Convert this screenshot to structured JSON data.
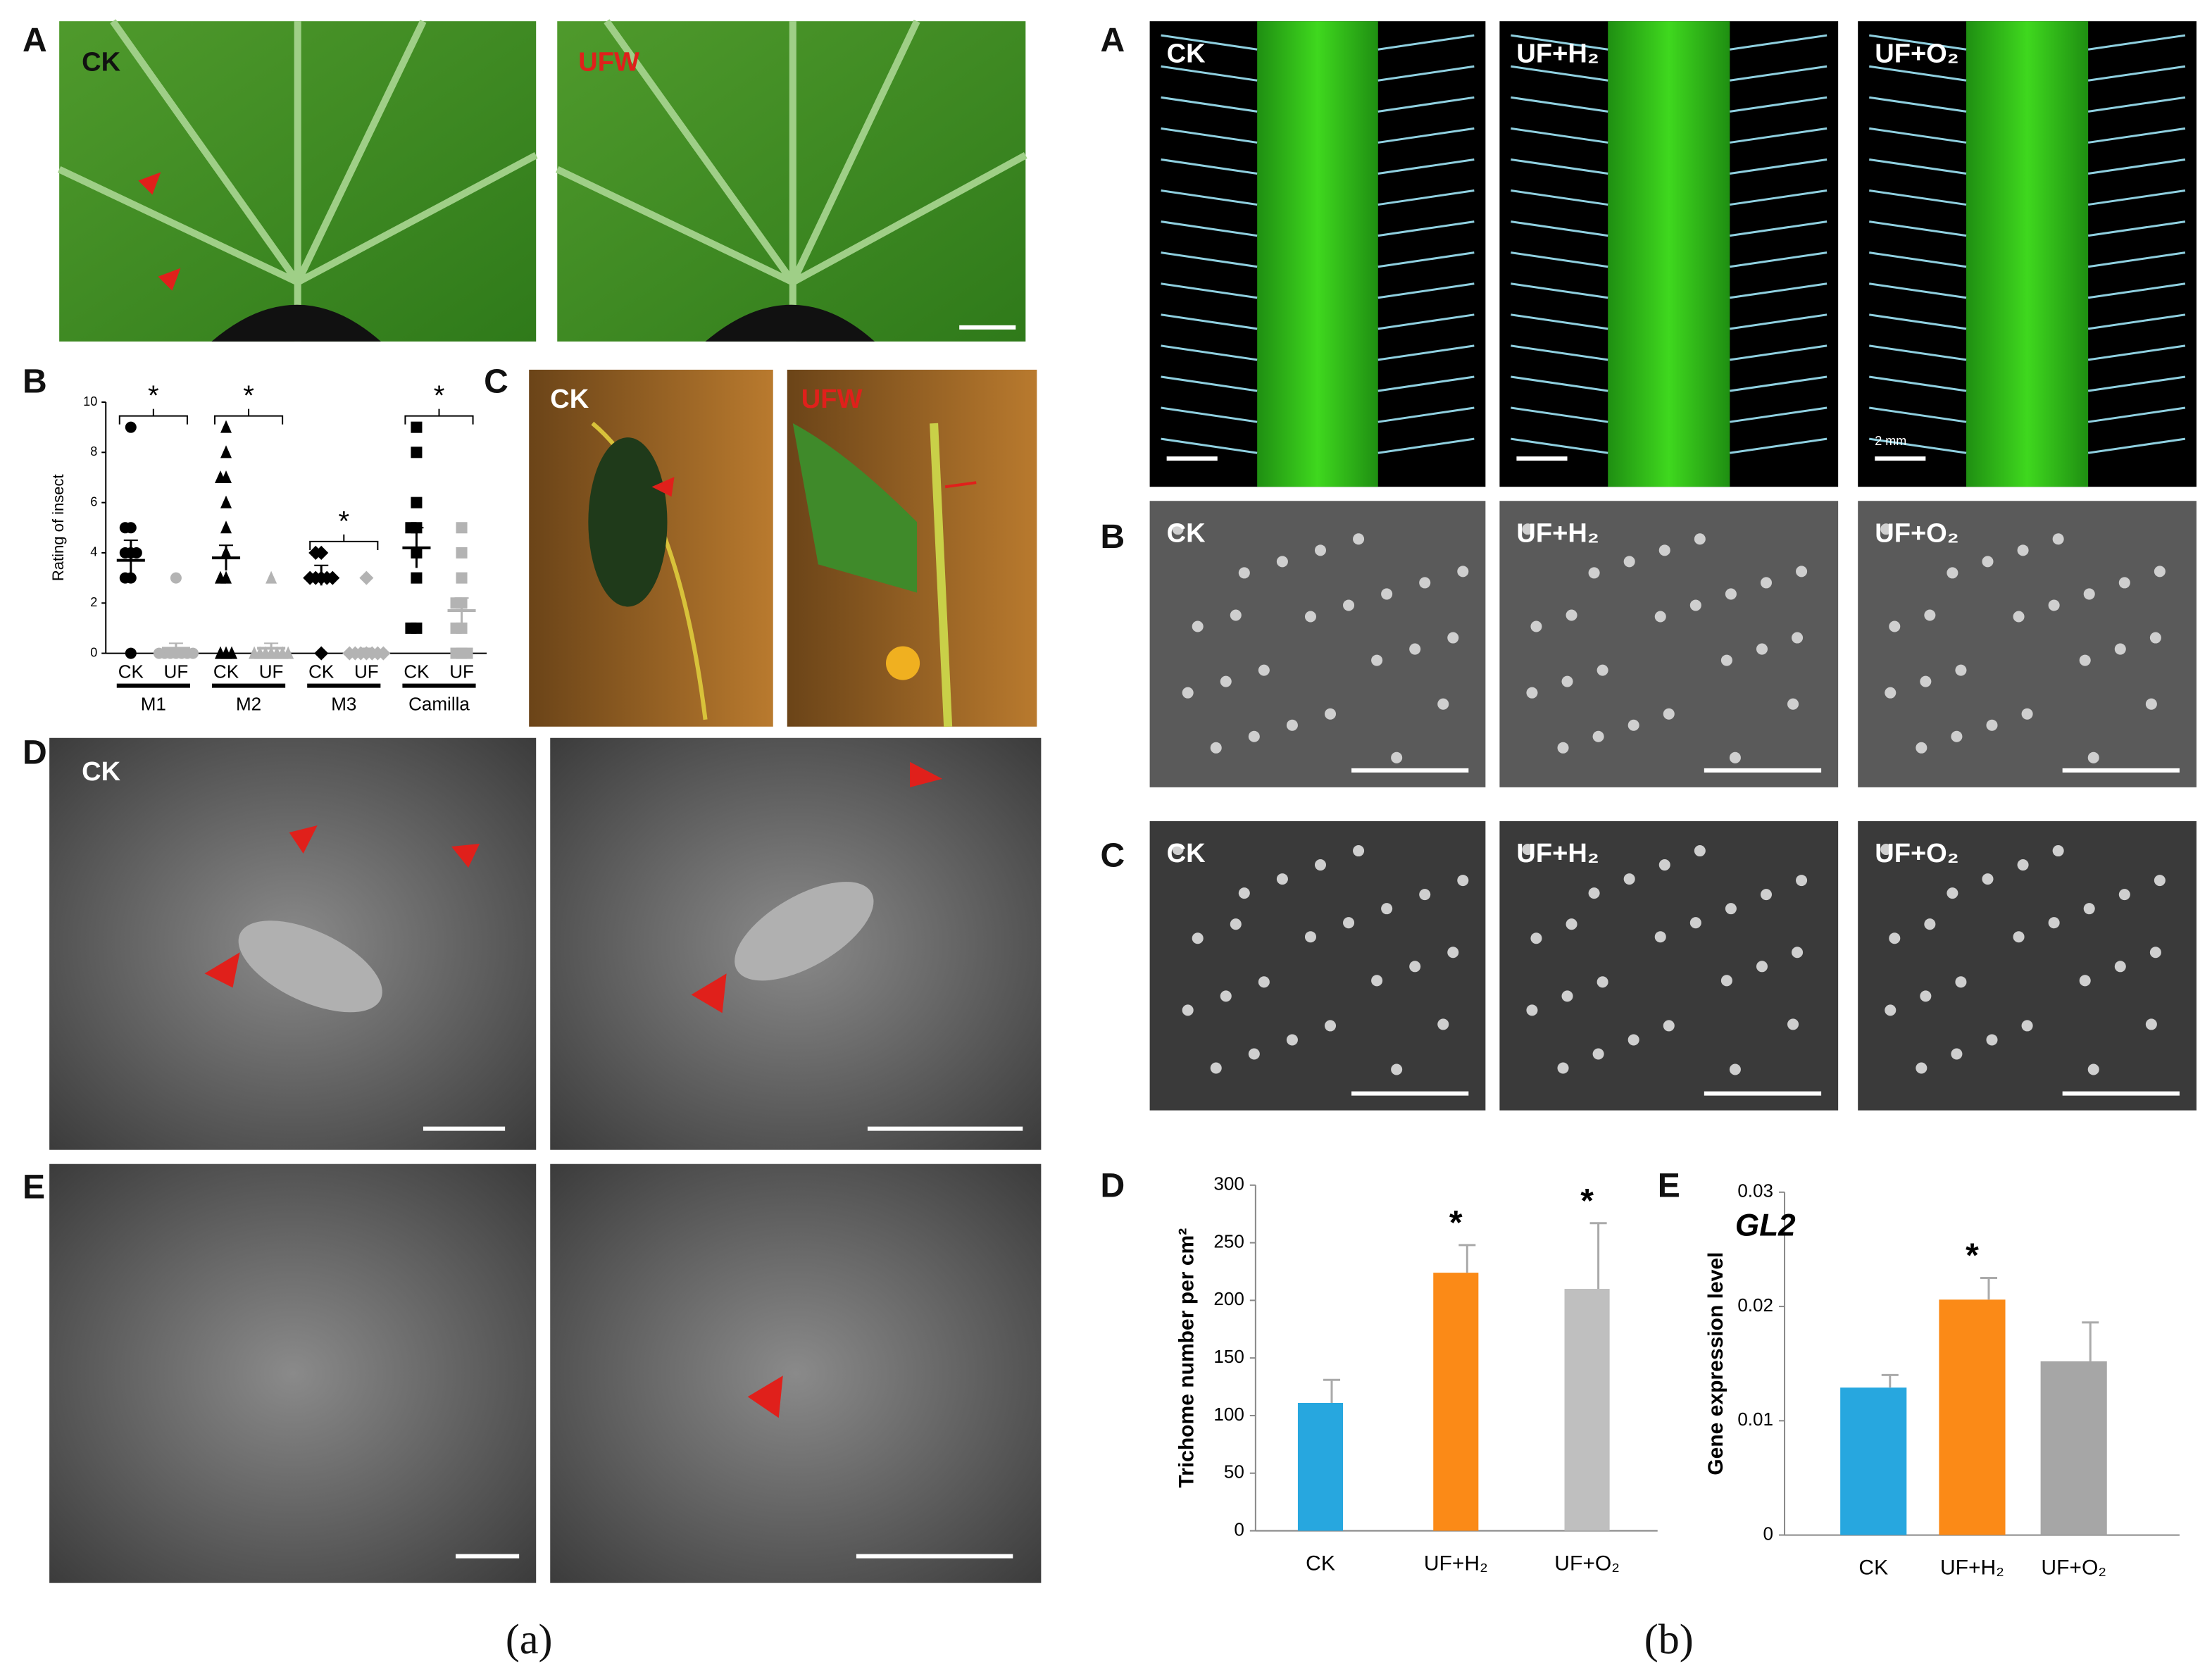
{
  "figure_a": {
    "label": "(a)",
    "panel_A": {
      "label": "A",
      "left": "CK",
      "right": "UFW"
    },
    "panel_B": {
      "label": "B"
    },
    "panel_C": {
      "label": "C",
      "left": "CK",
      "right": "UFW"
    },
    "panel_D": {
      "label": "D",
      "left": "CK"
    },
    "panel_E": {
      "label": "E"
    }
  },
  "figure_b": {
    "label": "(b)",
    "panel_A": {
      "label": "A",
      "images": [
        "CK",
        "UF+H₂",
        "UF+O₂"
      ],
      "scale": "2 mm"
    },
    "panel_B": {
      "label": "B",
      "images": [
        "CK",
        "UF+H₂",
        "UF+O₂"
      ]
    },
    "panel_C": {
      "label": "C",
      "images": [
        "CK",
        "UF+H₂",
        "UF+O₂"
      ]
    },
    "panel_D": {
      "label": "D"
    },
    "panel_E": {
      "label": "E"
    }
  },
  "chart_data": [
    {
      "type": "strip",
      "ylabel": "Rating of insect",
      "categories": [
        "CK",
        "UF",
        "CK",
        "UF",
        "CK",
        "UF",
        "CK",
        "UF"
      ],
      "groups": [
        "M1",
        "M2",
        "M3",
        "Camilla"
      ],
      "markers": [
        "circle",
        "triangle",
        "diamond",
        "square"
      ],
      "colors": [
        "#000000",
        "#b3b3b3"
      ],
      "points": [
        [
          9,
          5,
          5,
          4,
          4,
          4,
          3,
          3,
          0
        ],
        [
          3,
          0,
          0,
          0,
          0,
          0,
          0,
          0
        ],
        [
          9,
          8,
          7,
          7,
          6,
          5,
          4,
          3,
          3,
          0,
          0,
          0
        ],
        [
          3,
          0,
          0,
          0,
          0,
          0,
          0,
          0
        ],
        [
          4,
          4,
          3,
          3,
          3,
          3,
          3,
          0
        ],
        [
          3,
          0,
          0,
          0,
          0,
          0,
          0,
          0
        ],
        [
          9,
          8,
          6,
          5,
          5,
          4,
          3,
          1,
          1
        ],
        [
          5,
          4,
          3,
          2,
          2,
          1,
          1,
          0,
          0,
          0
        ]
      ],
      "means": [
        3.7,
        0.2,
        3.8,
        0.2,
        3.1,
        0.1,
        4.2,
        1.7
      ],
      "errors": [
        0.8,
        0.2,
        0.5,
        0.2,
        0.4,
        0.1,
        0.8,
        0.5
      ],
      "annotations": [
        "*",
        "*",
        "*",
        "*"
      ],
      "ylim": [
        0,
        10
      ],
      "yticks": [
        0,
        2,
        4,
        6,
        8,
        10
      ]
    },
    {
      "type": "bar",
      "ylabel": "Trichome number per cm²",
      "categories": [
        "CK",
        "UF+H₂",
        "UF+O₂"
      ],
      "values": [
        111,
        224,
        210
      ],
      "errors": [
        20,
        24,
        57
      ],
      "colors": [
        "#27a7df",
        "#fb8a17",
        "#bfbfbf"
      ],
      "annotations": [
        null,
        "*",
        "*"
      ],
      "ylim": [
        0,
        300
      ],
      "yticks": [
        0,
        50,
        100,
        150,
        200,
        250,
        300
      ]
    },
    {
      "type": "bar",
      "title": "GL2",
      "ylabel": "Gene expression level",
      "categories": [
        "CK",
        "UF+H₂",
        "UF+O₂"
      ],
      "values": [
        0.0129,
        0.0206,
        0.0152
      ],
      "errors": [
        0.0011,
        0.0019,
        0.0034
      ],
      "colors": [
        "#27a7df",
        "#fb8a17",
        "#a6a6a6"
      ],
      "annotations": [
        null,
        "*",
        null
      ],
      "ylim": [
        0,
        0.03
      ],
      "yticks": [
        0,
        0.01,
        0.02,
        0.03
      ]
    }
  ]
}
